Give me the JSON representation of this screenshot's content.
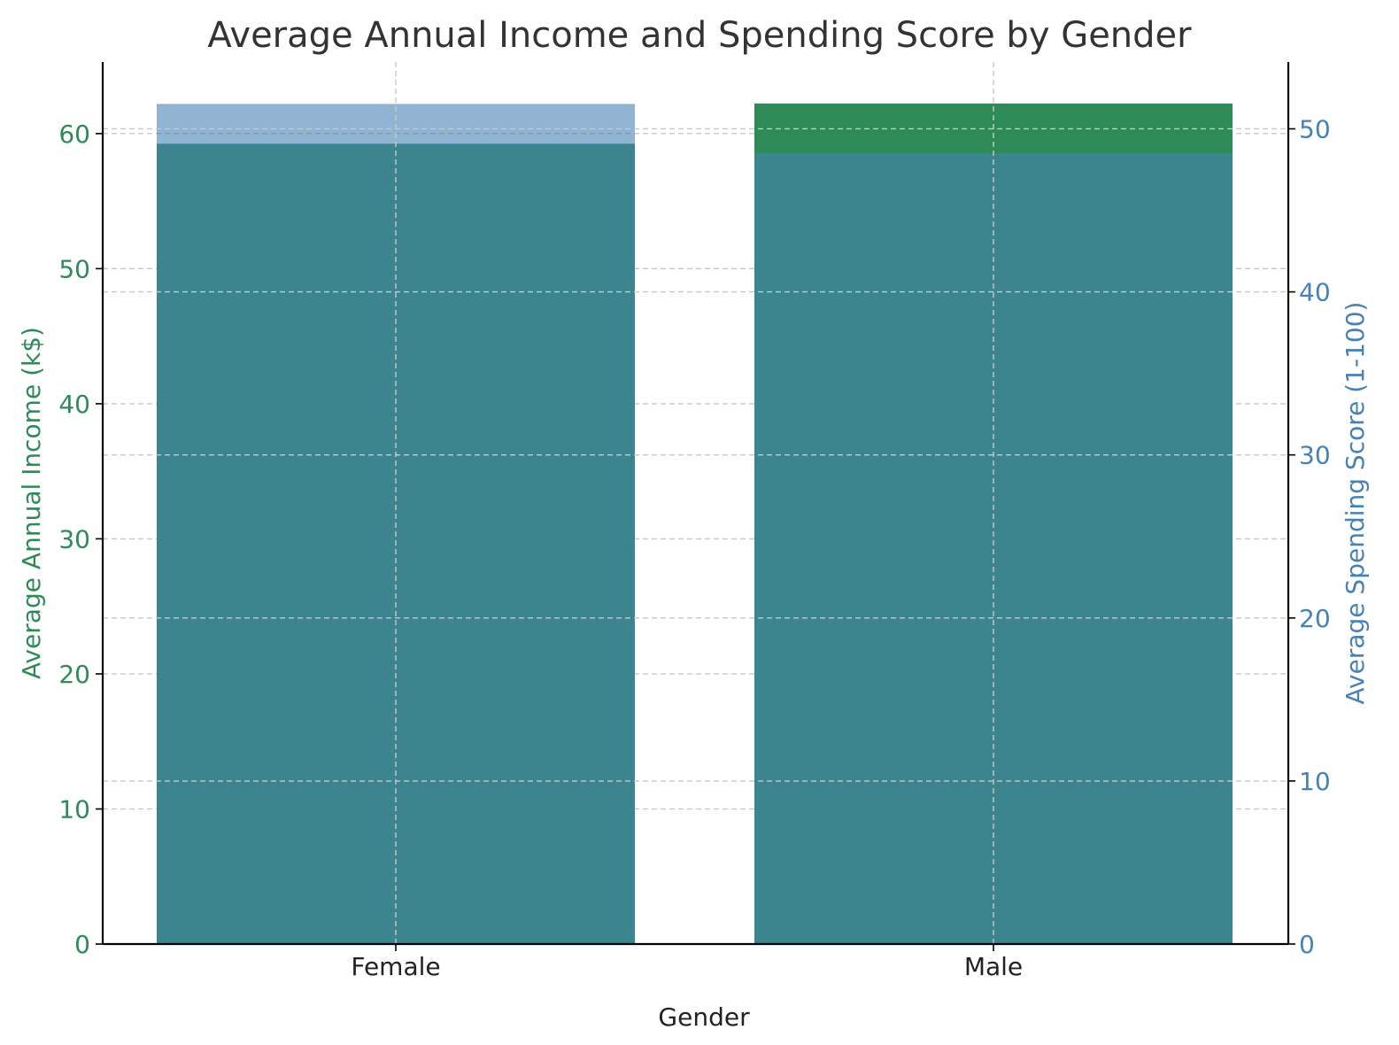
{
  "chart_data": {
    "type": "bar",
    "title": "Average Annual Income and Spending Score by Gender",
    "xlabel": "Gender",
    "categories": [
      "Female",
      "Male"
    ],
    "series": [
      {
        "name": "",
        "axis": "left",
        "ylabel": "Average Annual Income (k$)",
        "values": [
          59.25,
          62.23
        ],
        "color": "#2e8b57",
        "ylim": [
          0,
          65.3
        ],
        "ticks": [
          0,
          10,
          20,
          30,
          40,
          50,
          60
        ]
      },
      {
        "name": "",
        "axis": "right",
        "ylabel": "Average Spending Score (1-100)",
        "values": [
          51.53,
          48.51
        ],
        "color": "#4682b4",
        "ylim": [
          0,
          54.1
        ],
        "ticks": [
          0,
          10,
          20,
          30,
          40,
          50
        ]
      }
    ],
    "grid": true
  }
}
